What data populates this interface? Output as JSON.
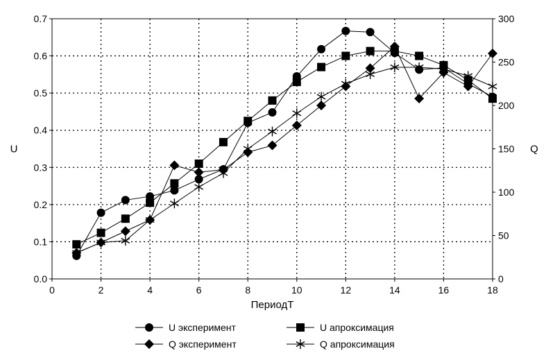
{
  "chart_data": {
    "type": "line",
    "title": "",
    "xlabel": "ПериодТ",
    "ylabel": "U",
    "y2label": "Q",
    "xlim": [
      0,
      18
    ],
    "ylim": [
      0,
      0.7
    ],
    "y2lim": [
      0,
      300
    ],
    "x_ticks": [
      "0",
      "2",
      "4",
      "6",
      "8",
      "10",
      "12",
      "14",
      "16",
      "18"
    ],
    "y_ticks": [
      "0.0",
      "0.1",
      "0.2",
      "0.3",
      "0.4",
      "0.5",
      "0.6",
      "0.7"
    ],
    "y2_ticks": [
      "0",
      "50",
      "100",
      "150",
      "200",
      "250",
      "300"
    ],
    "grid": true,
    "legend_position": "bottom",
    "series": [
      {
        "name": "U эксперимент",
        "axis": "left",
        "marker": "circle",
        "x": [
          1,
          2,
          3,
          4,
          5,
          6,
          7,
          8,
          9,
          10,
          11,
          12,
          13,
          14,
          15,
          16,
          17,
          18
        ],
        "values": [
          0.062,
          0.178,
          0.212,
          0.222,
          0.238,
          0.268,
          0.295,
          0.42,
          0.448,
          0.545,
          0.618,
          0.667,
          0.664,
          0.608,
          0.563,
          0.568,
          0.525,
          0.49
        ]
      },
      {
        "name": "U апроксимация",
        "axis": "left",
        "marker": "square",
        "x": [
          1,
          2,
          3,
          4,
          5,
          6,
          7,
          8,
          9,
          10,
          11,
          12,
          13,
          14,
          15,
          16,
          17,
          18
        ],
        "values": [
          0.093,
          0.124,
          0.162,
          0.205,
          0.257,
          0.31,
          0.368,
          0.425,
          0.48,
          0.53,
          0.57,
          0.6,
          0.613,
          0.613,
          0.6,
          0.575,
          0.535,
          0.485
        ]
      },
      {
        "name": "Q эксперимент",
        "axis": "right",
        "marker": "diamond",
        "x": [
          1,
          2,
          3,
          4,
          5,
          6,
          7,
          8,
          9,
          10,
          11,
          12,
          13,
          14,
          15,
          16,
          17,
          18
        ],
        "values": [
          30,
          42,
          55,
          68,
          131,
          123,
          126,
          146,
          154,
          177,
          200,
          222,
          243,
          268,
          208,
          238,
          222,
          260
        ]
      },
      {
        "name": "Q апроксимация",
        "axis": "right",
        "marker": "star",
        "x": [
          1,
          2,
          3,
          4,
          5,
          6,
          7,
          8,
          9,
          10,
          11,
          12,
          13,
          14,
          15,
          16,
          17,
          18
        ],
        "values": [
          30,
          42,
          44,
          68,
          87,
          106,
          122,
          150,
          170,
          191,
          210,
          225,
          236,
          244,
          244,
          242,
          234,
          222
        ]
      }
    ]
  }
}
